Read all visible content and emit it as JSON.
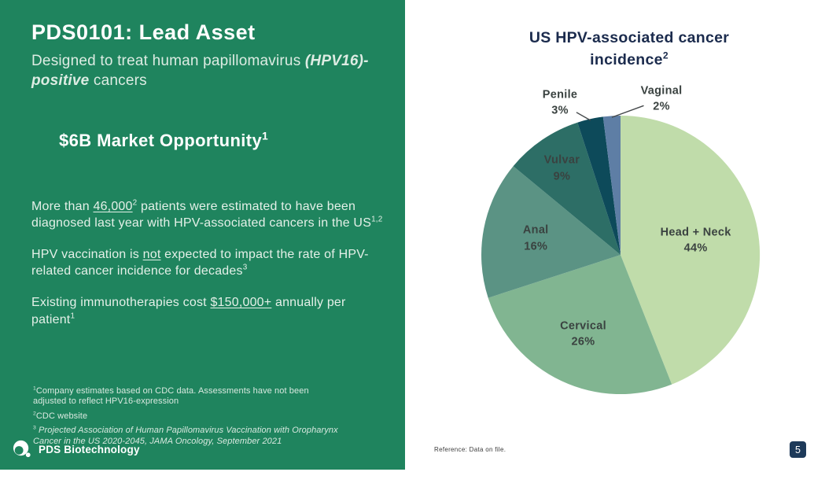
{
  "left_panel": {
    "title": "PDS0101: Lead Asset",
    "subtitle_rich": [
      {
        "t": "Designed to treat human papillomavirus "
      },
      {
        "t": "(HPV16)-positive",
        "b": true,
        "i": true
      },
      {
        "t": " cancers"
      }
    ],
    "market_rich": [
      {
        "t": "$6B Market Opportunity",
        "b": true
      },
      {
        "t": "1",
        "sup": true,
        "b": true
      }
    ],
    "paragraphs": [
      [
        {
          "t": "More than "
        },
        {
          "t": "46,000",
          "u": true
        },
        {
          "t": "2",
          "sup": true
        },
        {
          "t": " patients were estimated to have been diagnosed last year with HPV-associated cancers in the US"
        },
        {
          "t": "1,2",
          "sup": true
        }
      ],
      [
        {
          "t": "HPV vaccination is "
        },
        {
          "t": "not",
          "u": true
        },
        {
          "t": " expected to impact the rate of HPV-related cancer incidence for decades"
        },
        {
          "t": "3",
          "sup": true
        }
      ],
      [
        {
          "t": "Existing immunotherapies cost "
        },
        {
          "t": "$150,000+",
          "u": true
        },
        {
          "t": " annually per patient"
        },
        {
          "t": "1",
          "sup": true
        }
      ]
    ],
    "footnotes": [
      [
        {
          "t": "1",
          "sup": true
        },
        {
          "t": "Company estimates based on CDC data. Assessments have not been adjusted to reflect HPV16-expression"
        }
      ],
      [
        {
          "t": "2",
          "sup": true
        },
        {
          "t": "CDC website"
        }
      ],
      [
        {
          "t": "3",
          "sup": true
        },
        {
          "t": " Projected Association of Human Papillomavirus Vaccination with Oropharynx Cancer in the US 2020-2045, JAMA Oncology, September 2021",
          "i": true
        }
      ]
    ],
    "logo_text": "PDS Biotechnology",
    "panel_color": "#1f845e"
  },
  "chart": {
    "title_rich": [
      {
        "t": "US HPV-associated cancer incidence",
        "b": true
      },
      {
        "t": "2",
        "sup": true,
        "b": true
      }
    ]
  },
  "chart_data": {
    "type": "pie",
    "title": "US HPV-associated cancer incidence²",
    "labels": [
      "Head + Neck",
      "Cervical",
      "Anal",
      "Vulvar",
      "Penile",
      "Vaginal"
    ],
    "values": [
      44,
      26,
      16,
      9,
      3,
      2
    ],
    "unit": "%",
    "colors": [
      "#c0dcaa",
      "#81b591",
      "#5b9384",
      "#2d6e66",
      "#0d4a5a",
      "#5e7ea5"
    ],
    "start_angle_deg": 0,
    "direction": "clockwise",
    "legend": "none",
    "outside_labels": [
      "Penile",
      "Vaginal"
    ],
    "label_color": "#3a4240"
  },
  "footer": {
    "reference": "Reference: Data on file.",
    "page_number": "5"
  }
}
